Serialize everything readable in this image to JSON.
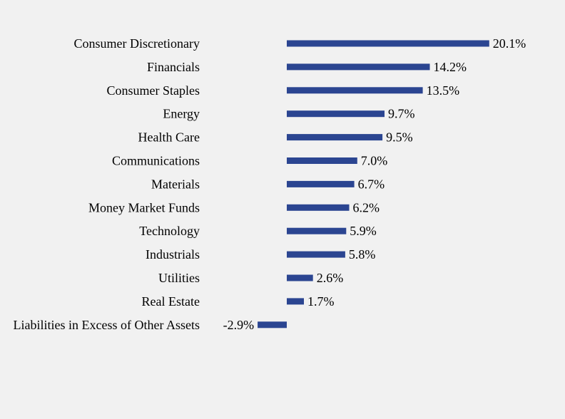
{
  "chart_data": {
    "type": "bar",
    "orientation": "horizontal",
    "title": "",
    "xlabel": "",
    "ylabel": "",
    "categories": [
      "Consumer Discretionary",
      "Financials",
      "Consumer Staples",
      "Energy",
      "Health Care",
      "Communications",
      "Materials",
      "Money Market Funds",
      "Technology",
      "Industrials",
      "Utilities",
      "Real Estate",
      "Liabilities in Excess of Other Assets"
    ],
    "values": [
      20.1,
      14.2,
      13.5,
      9.7,
      9.5,
      7.0,
      6.7,
      6.2,
      5.9,
      5.8,
      2.6,
      1.7,
      -2.9
    ],
    "value_labels": [
      "20.1%",
      "14.2%",
      "13.5%",
      "9.7%",
      "9.5%",
      "7.0%",
      "6.7%",
      "6.2%",
      "5.9%",
      "5.8%",
      "2.6%",
      "1.7%",
      "-2.9%"
    ],
    "grid": false,
    "legend": "none",
    "bar_color": "#2b4591",
    "background_color": "#f1f1f1"
  }
}
